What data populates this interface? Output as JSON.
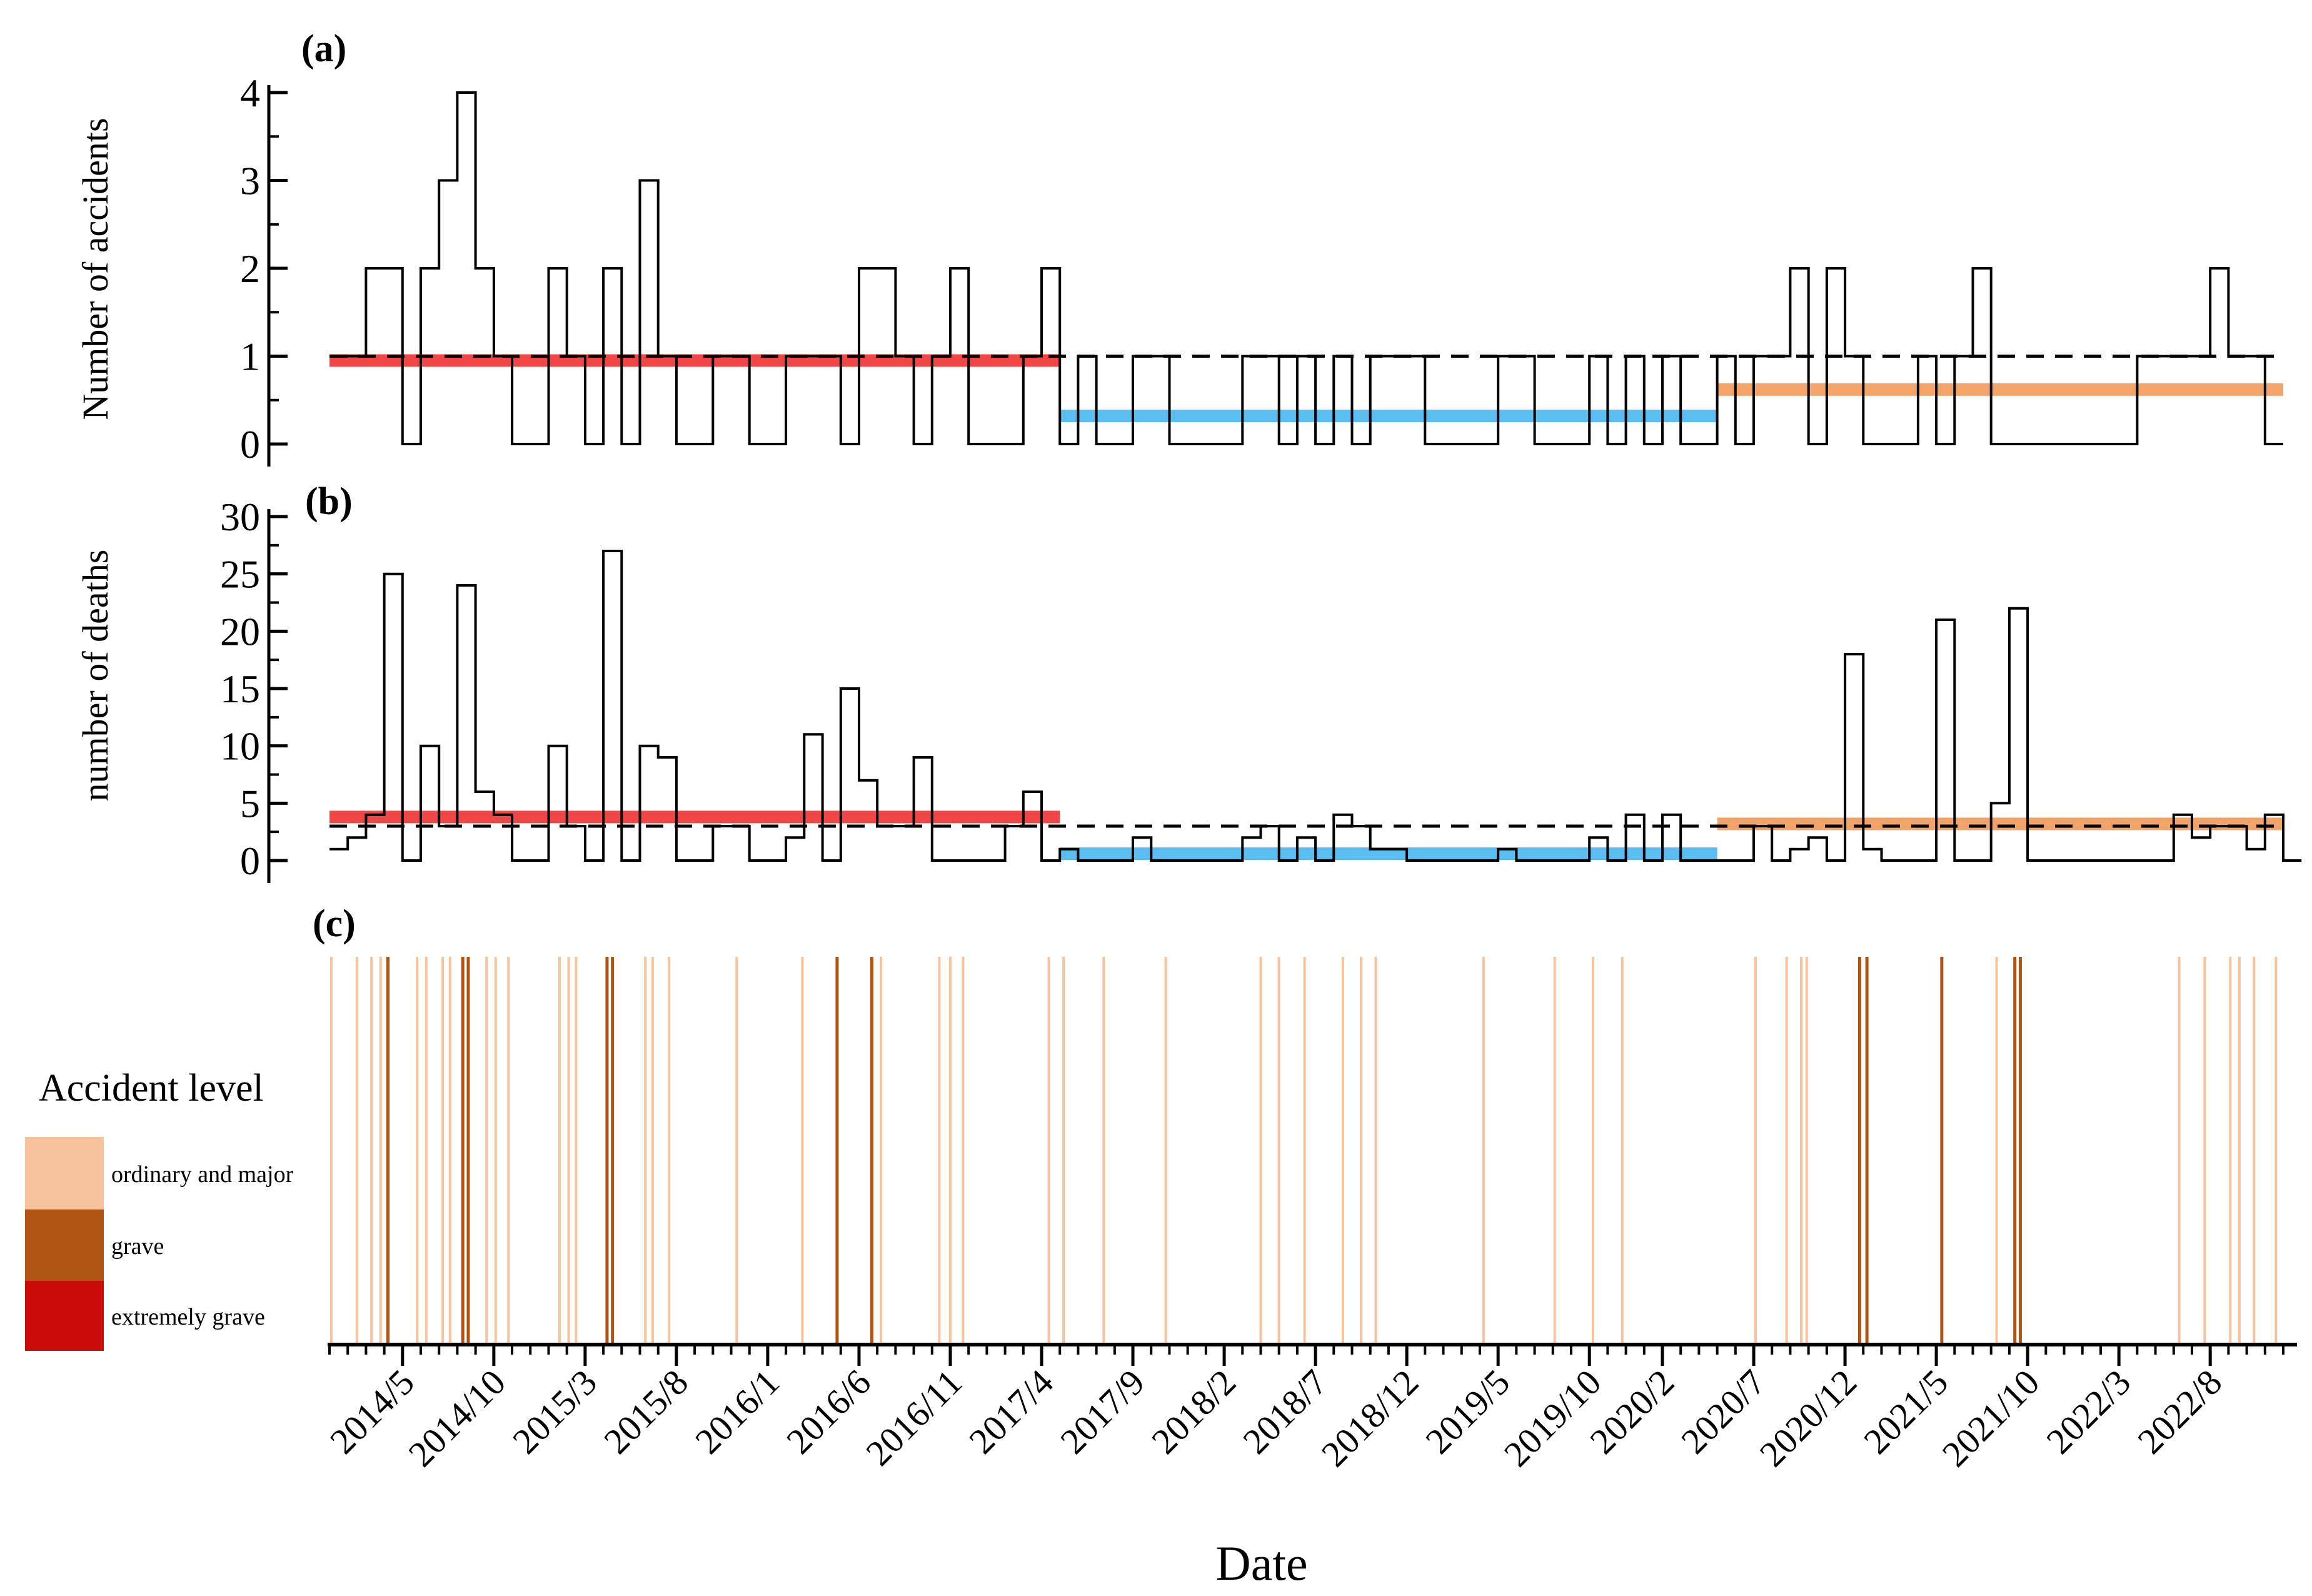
{
  "chart_data": [
    {
      "panel": "(a)",
      "type": "line",
      "step": true,
      "ylabel": "Number of accidents",
      "ylim": [
        0,
        4
      ],
      "yticks": [
        0,
        1,
        2,
        3,
        4
      ],
      "x": [
        "2014/1",
        "2014/2",
        "2014/3",
        "2014/4",
        "2014/5",
        "2014/6",
        "2014/7",
        "2014/8",
        "2014/9",
        "2014/10",
        "2014/11",
        "2014/12",
        "2015/1",
        "2015/2",
        "2015/3",
        "2015/4",
        "2015/5",
        "2015/6",
        "2015/7",
        "2015/8",
        "2015/9",
        "2015/10",
        "2015/11",
        "2015/12",
        "2016/1",
        "2016/2",
        "2016/3",
        "2016/4",
        "2016/5",
        "2016/6",
        "2016/7",
        "2016/8",
        "2016/9",
        "2016/10",
        "2016/11",
        "2016/12",
        "2017/1",
        "2017/2",
        "2017/3",
        "2017/4",
        "2017/5",
        "2017/6",
        "2017/7",
        "2017/8",
        "2017/9",
        "2017/10",
        "2017/11",
        "2017/12",
        "2018/1",
        "2018/2",
        "2018/3",
        "2018/4",
        "2018/5",
        "2018/6",
        "2018/7",
        "2018/8",
        "2018/9",
        "2018/10",
        "2018/11",
        "2018/12",
        "2019/1",
        "2019/2",
        "2019/3",
        "2019/4",
        "2019/5",
        "2019/6",
        "2019/7",
        "2019/8",
        "2019/9",
        "2019/10",
        "2019/11",
        "2019/12",
        "2020/1",
        "2020/2",
        "2020/3",
        "2020/4",
        "2020/5",
        "2020/6",
        "2020/7",
        "2020/8",
        "2020/9",
        "2020/10",
        "2020/11",
        "2020/12",
        "2021/1",
        "2021/2",
        "2021/3",
        "2021/4",
        "2021/5",
        "2021/6",
        "2021/7",
        "2021/8",
        "2021/9",
        "2021/10",
        "2021/11",
        "2021/12",
        "2022/1",
        "2022/2",
        "2022/3",
        "2022/4",
        "2022/5",
        "2022/6",
        "2022/7",
        "2022/8",
        "2022/9",
        "2022/10",
        "2022/11"
      ],
      "series": [
        {
          "values": [
            1,
            1,
            2,
            2,
            0,
            2,
            3,
            4,
            2,
            1,
            0,
            0,
            2,
            1,
            0,
            2,
            0,
            3,
            1,
            0,
            0,
            1,
            1,
            0,
            0,
            1,
            1,
            1,
            0,
            2,
            2,
            1,
            0,
            1,
            2,
            0,
            0,
            0,
            1,
            2,
            0,
            1,
            0,
            0,
            1,
            1,
            0,
            0,
            0,
            0,
            1,
            1,
            0,
            1,
            0,
            1,
            0,
            1,
            1,
            1,
            0,
            0,
            0,
            0,
            1,
            1,
            0,
            0,
            0,
            1,
            0,
            1,
            0,
            1,
            0,
            0,
            1,
            0,
            1,
            1,
            2,
            0,
            2,
            1,
            0,
            0,
            0,
            1,
            0,
            1,
            2,
            0,
            0,
            0,
            0,
            0,
            0,
            0,
            0,
            1,
            1,
            1,
            1,
            2,
            1,
            1,
            0
          ]
        }
      ],
      "mean_line": 1,
      "period_means": [
        {
          "from": "2014/1",
          "to": "2017/5",
          "value": 0.95,
          "color": "#f04646"
        },
        {
          "from": "2017/5",
          "to": "2020/5",
          "value": 0.32,
          "color": "#5bbcf2"
        },
        {
          "from": "2020/5",
          "to": "2022/12",
          "value": 0.62,
          "color": "#f2a46a"
        }
      ]
    },
    {
      "panel": "(b)",
      "type": "line",
      "step": true,
      "ylabel": "number of deaths",
      "ylim": [
        0,
        30
      ],
      "yticks": [
        0,
        5,
        10,
        15,
        20,
        25,
        30
      ],
      "series": [
        {
          "values": [
            1,
            2,
            4,
            25,
            0,
            10,
            3,
            24,
            6,
            4,
            0,
            0,
            10,
            3,
            0,
            27,
            0,
            10,
            9,
            0,
            0,
            3,
            3,
            0,
            0,
            2,
            11,
            0,
            15,
            7,
            3,
            3,
            9,
            0,
            0,
            0,
            0,
            3,
            6,
            0,
            1,
            0,
            0,
            0,
            2,
            0,
            0,
            0,
            0,
            0,
            2,
            3,
            0,
            2,
            0,
            4,
            3,
            1,
            1,
            0,
            0,
            0,
            0,
            0,
            1,
            0,
            0,
            0,
            0,
            2,
            0,
            4,
            0,
            4,
            0,
            0,
            0,
            0,
            3,
            0,
            1,
            2,
            0,
            18,
            1,
            0,
            0,
            0,
            21,
            0,
            0,
            5,
            22,
            0,
            0,
            0,
            0,
            0,
            0,
            0,
            0,
            4,
            2,
            3,
            3,
            1,
            4,
            0
          ]
        }
      ],
      "mean_line": 3,
      "period_means": [
        {
          "from": "2014/1",
          "to": "2017/5",
          "value": 3.8,
          "color": "#f04646"
        },
        {
          "from": "2017/5",
          "to": "2020/5",
          "value": 0.6,
          "color": "#5bbcf2"
        },
        {
          "from": "2020/5",
          "to": "2022/12",
          "value": 3.2,
          "color": "#f2a46a"
        }
      ]
    },
    {
      "panel": "(c)",
      "type": "event-lines",
      "legend_title": "Accident level",
      "legend": [
        {
          "label": "ordinary and major",
          "color": "#f7c39c"
        },
        {
          "label": "grave",
          "color": "#b05414"
        },
        {
          "label": "extremely grave",
          "color": "#cc0a0a"
        }
      ],
      "events": [
        {
          "t": 0.1,
          "level": 0
        },
        {
          "t": 1.5,
          "level": 0
        },
        {
          "t": 2.3,
          "level": 0
        },
        {
          "t": 2.8,
          "level": 0
        },
        {
          "t": 3.2,
          "level": 1
        },
        {
          "t": 4.8,
          "level": 0
        },
        {
          "t": 5.3,
          "level": 0
        },
        {
          "t": 6.2,
          "level": 0
        },
        {
          "t": 6.6,
          "level": 0
        },
        {
          "t": 7.3,
          "level": 1
        },
        {
          "t": 7.6,
          "level": 1
        },
        {
          "t": 8.6,
          "level": 0
        },
        {
          "t": 9.1,
          "level": 0
        },
        {
          "t": 9.8,
          "level": 0
        },
        {
          "t": 12.6,
          "level": 0
        },
        {
          "t": 13.1,
          "level": 0
        },
        {
          "t": 13.5,
          "level": 0
        },
        {
          "t": 15.2,
          "level": 1
        },
        {
          "t": 15.5,
          "level": 1
        },
        {
          "t": 17.3,
          "level": 0
        },
        {
          "t": 17.7,
          "level": 0
        },
        {
          "t": 18.6,
          "level": 0
        },
        {
          "t": 22.3,
          "level": 0
        },
        {
          "t": 25.9,
          "level": 0
        },
        {
          "t": 27.8,
          "level": 1
        },
        {
          "t": 29.7,
          "level": 1
        },
        {
          "t": 30.2,
          "level": 0
        },
        {
          "t": 33.4,
          "level": 0
        },
        {
          "t": 34.0,
          "level": 0
        },
        {
          "t": 34.7,
          "level": 0
        },
        {
          "t": 39.4,
          "level": 0
        },
        {
          "t": 40.2,
          "level": 0
        },
        {
          "t": 42.4,
          "level": 0
        },
        {
          "t": 45.8,
          "level": 0
        },
        {
          "t": 51.0,
          "level": 0
        },
        {
          "t": 52.0,
          "level": 0
        },
        {
          "t": 53.4,
          "level": 0
        },
        {
          "t": 55.5,
          "level": 0
        },
        {
          "t": 56.5,
          "level": 0
        },
        {
          "t": 57.3,
          "level": 0
        },
        {
          "t": 63.2,
          "level": 0
        },
        {
          "t": 67.1,
          "level": 0
        },
        {
          "t": 69.2,
          "level": 0
        },
        {
          "t": 70.8,
          "level": 0
        },
        {
          "t": 78.1,
          "level": 0
        },
        {
          "t": 79.8,
          "level": 0
        },
        {
          "t": 80.6,
          "level": 0
        },
        {
          "t": 80.9,
          "level": 0
        },
        {
          "t": 83.8,
          "level": 1
        },
        {
          "t": 84.2,
          "level": 1
        },
        {
          "t": 88.3,
          "level": 1
        },
        {
          "t": 91.3,
          "level": 0
        },
        {
          "t": 92.3,
          "level": 1
        },
        {
          "t": 92.6,
          "level": 1
        },
        {
          "t": 101.3,
          "level": 0
        },
        {
          "t": 102.7,
          "level": 0
        },
        {
          "t": 104.1,
          "level": 0
        },
        {
          "t": 104.6,
          "level": 0
        },
        {
          "t": 105.4,
          "level": 0
        },
        {
          "t": 106.6,
          "level": 0
        }
      ]
    }
  ],
  "xaxis": {
    "xlabel": "Date",
    "tick_labels": [
      "2014/5",
      "2014/10",
      "2015/3",
      "2015/8",
      "2016/1",
      "2016/6",
      "2016/11",
      "2017/4",
      "2017/9",
      "2018/2",
      "2018/7",
      "2018/12",
      "2019/5",
      "2019/10",
      "2020/2",
      "2020/7",
      "2020/12",
      "2021/5",
      "2021/10",
      "2022/3",
      "2022/8"
    ]
  },
  "panel_labels": {
    "a": "(a)",
    "b": "(b)",
    "c": "(c)"
  },
  "colors": {
    "line": "#000000",
    "mean_dash": "#000000"
  }
}
